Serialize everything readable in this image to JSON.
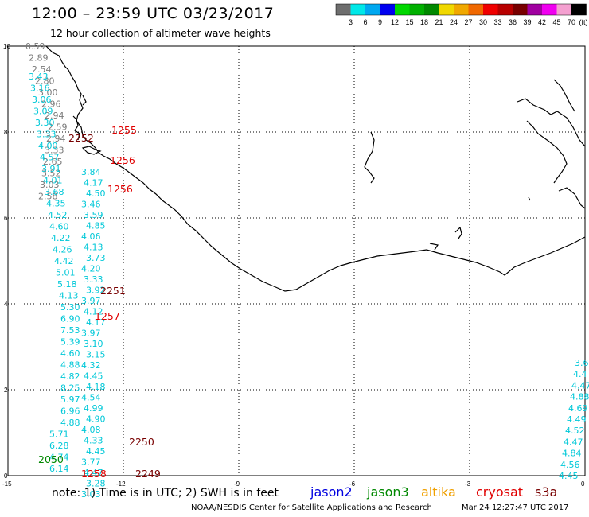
{
  "header": {
    "title": "12:00 – 23:59 UTC 03/23/2017",
    "subtitle": "12 hour collection of altimeter wave heights"
  },
  "colorbar": {
    "unit": "(ft)",
    "colors": [
      "#6e6e6e",
      "#00e8e8",
      "#00a8f0",
      "#0000f0",
      "#00d800",
      "#00b000",
      "#008800",
      "#f0d800",
      "#f0a800",
      "#f06800",
      "#f00000",
      "#b80000",
      "#780000",
      "#a000a0",
      "#f000f0",
      "#f4a0d0",
      "#000000"
    ],
    "labels": [
      "3",
      "6",
      "9",
      "12",
      "15",
      "18",
      "21",
      "24",
      "27",
      "30",
      "33",
      "36",
      "39",
      "42",
      "45",
      "70"
    ]
  },
  "axes": {
    "x_ticks": [
      "-15",
      "-12",
      "-9",
      "-6",
      "-3",
      "0"
    ],
    "y_ticks": [
      "10",
      "8",
      "6",
      "4",
      "2",
      "0"
    ]
  },
  "footer": {
    "note": "note:  1) Time is in UTC;  2) SWH is in feet",
    "satellites": [
      {
        "name": "jason2",
        "color": "#0000e0"
      },
      {
        "name": "jason3",
        "color": "#008800"
      },
      {
        "name": "altika",
        "color": "#f0a000"
      },
      {
        "name": "cryosat",
        "color": "#e00000"
      },
      {
        "name": "s3a",
        "color": "#780000"
      }
    ],
    "credit": "NOAA/NESDIS Center for Satellite Applications and Research",
    "timestamp": "Mar 24 12:27:47 UTC 2017"
  },
  "observations": {
    "gray_track": [
      "0.59",
      "2.89",
      "2.54",
      "2.80",
      "3.00",
      "2.96",
      "2.94",
      "2.59",
      "2.94",
      "3.33",
      "2.65",
      "3.52",
      "3.03",
      "2.58"
    ],
    "cyan_track_a": [
      "3.43",
      "3.16",
      "3.06",
      "3.09",
      "3.30",
      "3.33",
      "4.00",
      "4.57",
      "3.91",
      "4.01",
      "3.68",
      "4.35",
      "4.52",
      "4.60",
      "4.22",
      "4.26",
      "4.42",
      "5.01",
      "5.18",
      "4.13",
      "5.30",
      "6.90",
      "7.53",
      "5.39",
      "4.60",
      "4.88",
      "4.82",
      "8.25",
      "5.97",
      "6.96",
      "4.88",
      "5.71",
      "6.28",
      "4.74",
      "6.14"
    ],
    "cyan_track_b": [
      "3.84",
      "4.17",
      "4.50",
      "3.46",
      "3.59",
      "4.85",
      "4.06",
      "4.13",
      "3.73",
      "4.20",
      "3.33",
      "3.92",
      "3.97",
      "4.12",
      "4.17",
      "3.97",
      "3.10",
      "3.15",
      "4.32",
      "4.45",
      "4.18",
      "4.54",
      "4.99",
      "4.90",
      "4.08",
      "4.33",
      "4.45",
      "3.77",
      "4.47",
      "3.28",
      "3.03"
    ],
    "cyan_track_c": [
      "3.6",
      "4.4",
      "4.47",
      "4.88",
      "4.69",
      "4.49",
      "4.52",
      "4.47",
      "4.84",
      "4.56",
      "4.45"
    ],
    "pass_times": [
      {
        "label": "1255",
        "color": "#e00000"
      },
      {
        "label": "2252",
        "color": "#780000"
      },
      {
        "label": "1256",
        "color": "#e00000"
      },
      {
        "label": "1256",
        "color": "#e00000"
      },
      {
        "label": "2251",
        "color": "#780000"
      },
      {
        "label": "1257",
        "color": "#e00000"
      },
      {
        "label": "2250",
        "color": "#780000"
      },
      {
        "label": "2050",
        "color": "#008800"
      },
      {
        "label": "1258",
        "color": "#e00000"
      },
      {
        "label": "2249",
        "color": "#780000"
      }
    ]
  }
}
